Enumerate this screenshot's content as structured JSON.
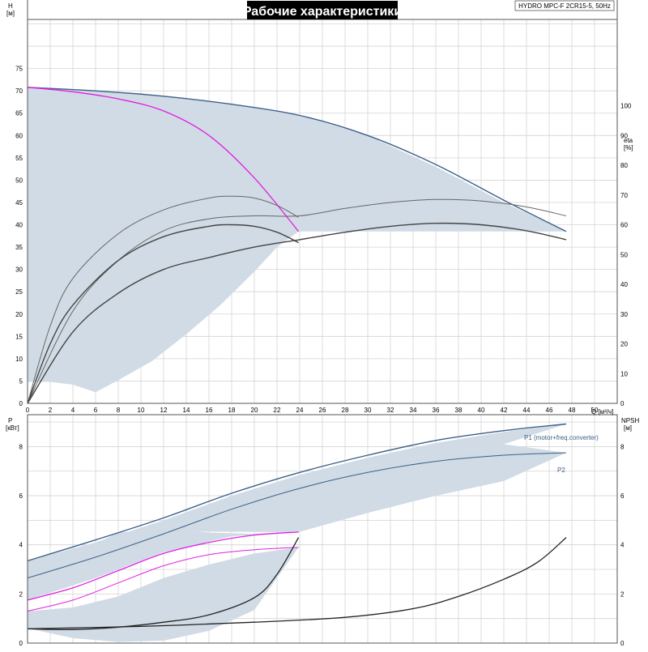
{
  "title": "Рабочие характеристики",
  "model_label": "HYDRO MPC-F 2CR15-5, 50Hz",
  "colors": {
    "grid": "#d4d4d4",
    "axis": "#555555",
    "envelope": "#d0dbe5",
    "qh_max": "#3d6089",
    "qh_single": "#e020e0",
    "efficiency": "#444444",
    "p1_line": "#3d6089",
    "npsh": "#222222",
    "title_bg": "#000000",
    "title_fg": "#ffffff"
  },
  "chart_data": [
    {
      "type": "line",
      "name": "qh",
      "xlabel": "Q [м³/ч]",
      "ylabel_left": [
        "H",
        "[м]"
      ],
      "ylabel_right": [
        "eta",
        "[%]"
      ],
      "xlim": [
        0,
        52
      ],
      "ylim": [
        0,
        86
      ],
      "eta_lim": [
        0,
        129
      ],
      "xticks": [
        0,
        2,
        4,
        6,
        8,
        10,
        12,
        14,
        16,
        18,
        20,
        22,
        24,
        26,
        28,
        30,
        32,
        34,
        36,
        38,
        40,
        42,
        44,
        46,
        48,
        50
      ],
      "yticks": [
        0,
        5,
        10,
        15,
        20,
        25,
        30,
        35,
        40,
        45,
        50,
        55,
        60,
        65,
        70,
        75
      ],
      "eta_ticks": [
        0,
        10,
        20,
        30,
        40,
        50,
        60,
        70,
        80,
        90,
        100
      ],
      "envelope_region": [
        [
          0,
          70.8
        ],
        [
          10,
          69.5
        ],
        [
          18,
          67
        ],
        [
          24,
          64.5
        ],
        [
          30,
          60
        ],
        [
          36,
          53
        ],
        [
          42,
          45
        ],
        [
          47.5,
          38.5
        ],
        [
          23.9,
          38.5
        ],
        [
          22,
          35
        ],
        [
          20,
          29.5
        ],
        [
          17,
          22
        ],
        [
          14,
          15.5
        ],
        [
          11,
          9.5
        ],
        [
          8,
          5.2
        ],
        [
          6,
          2.5
        ],
        [
          4,
          4.2
        ],
        [
          2,
          4.8
        ],
        [
          0,
          4.8
        ]
      ],
      "series": [
        {
          "key": "qh_max",
          "points": [
            [
              0,
              70.8
            ],
            [
              6,
              70
            ],
            [
              12,
              68.8
            ],
            [
              18,
              67
            ],
            [
              24,
              64.5
            ],
            [
              30,
              60
            ],
            [
              36,
              53.5
            ],
            [
              42,
              45.5
            ],
            [
              47.5,
              38.5
            ]
          ]
        },
        {
          "key": "qh_single",
          "points": [
            [
              0,
              70.8
            ],
            [
              4,
              69.8
            ],
            [
              8,
              68.2
            ],
            [
              12,
              65.5
            ],
            [
              16,
              60
            ],
            [
              20,
              50.5
            ],
            [
              23.9,
              38.5
            ]
          ]
        },
        {
          "key": "eta_upper_max",
          "points": [
            [
              0,
              0
            ],
            [
              4,
              31
            ],
            [
              8,
              48
            ],
            [
              12,
              58
            ],
            [
              16,
              62
            ],
            [
              20,
              63
            ],
            [
              24,
              63
            ],
            [
              28,
              65.5
            ],
            [
              32,
              67.5
            ],
            [
              36,
              68.5
            ],
            [
              40,
              68
            ],
            [
              44,
              66
            ],
            [
              47.5,
              63
            ]
          ]
        },
        {
          "key": "eta_lower_max",
          "points": [
            [
              0,
              0
            ],
            [
              4,
              24
            ],
            [
              8,
              37
            ],
            [
              12,
              45
            ],
            [
              16,
              49
            ],
            [
              20,
              52.5
            ],
            [
              24,
              55
            ],
            [
              28,
              57.5
            ],
            [
              32,
              59.5
            ],
            [
              36,
              60.5
            ],
            [
              40,
              60
            ],
            [
              44,
              58
            ],
            [
              47.5,
              55
            ]
          ]
        },
        {
          "key": "eta_upper_single",
          "points": [
            [
              0,
              0
            ],
            [
              2,
              26
            ],
            [
              4,
              42
            ],
            [
              8,
              57
            ],
            [
              12,
              65
            ],
            [
              16,
              69
            ],
            [
              18,
              69.6
            ],
            [
              20,
              69
            ],
            [
              22,
              66.5
            ],
            [
              23.9,
              62.5
            ]
          ]
        },
        {
          "key": "eta_lower_single",
          "points": [
            [
              0,
              0
            ],
            [
              2,
              20
            ],
            [
              4,
              33
            ],
            [
              8,
              48
            ],
            [
              12,
              56
            ],
            [
              16,
              59.5
            ],
            [
              18,
              60
            ],
            [
              20,
              59.5
            ],
            [
              22,
              57.5
            ],
            [
              23.9,
              54
            ]
          ]
        }
      ]
    },
    {
      "type": "line",
      "name": "power_npsh",
      "ylabel_left": [
        "P",
        "[кВт]"
      ],
      "ylabel_right": [
        "NPSH",
        "[м]"
      ],
      "xlim": [
        0,
        52
      ],
      "ylim": [
        0,
        9.3
      ],
      "yticks": [
        0,
        2,
        4,
        6,
        8
      ],
      "npsh_ticks": [
        0,
        2,
        4,
        6,
        8
      ],
      "envelope_regions": [
        [
          [
            0,
            3.35
          ],
          [
            6,
            4.1
          ],
          [
            12,
            5.0
          ],
          [
            18,
            6.0
          ],
          [
            24,
            6.85
          ],
          [
            30,
            7.55
          ],
          [
            36,
            8.15
          ],
          [
            42,
            8.6
          ],
          [
            47.5,
            8.92
          ],
          [
            42,
            8.1
          ],
          [
            36,
            7.7
          ],
          [
            30,
            7.2
          ],
          [
            24,
            6.55
          ],
          [
            20,
            5.8
          ],
          [
            16,
            5.1
          ],
          [
            12,
            4.7
          ],
          [
            10,
            4.5
          ],
          [
            6,
            3.55
          ],
          [
            0,
            2.65
          ]
        ],
        [
          [
            0,
            1.75
          ],
          [
            6,
            2.65
          ],
          [
            12,
            3.7
          ],
          [
            18,
            4.35
          ],
          [
            23.9,
            4.52
          ],
          [
            20,
            4.45
          ],
          [
            16,
            4.5
          ],
          [
            12,
            4.65
          ],
          [
            8,
            4.5
          ],
          [
            6,
            4.05
          ],
          [
            0,
            3.35
          ]
        ],
        [
          [
            23.9,
            4.52
          ],
          [
            30,
            5.3
          ],
          [
            36,
            6.0
          ],
          [
            42,
            6.6
          ],
          [
            47.5,
            7.75
          ],
          [
            42,
            8.1
          ],
          [
            36,
            7.7
          ],
          [
            30,
            7.2
          ],
          [
            24,
            6.55
          ],
          [
            20,
            5.8
          ],
          [
            16,
            5.1
          ],
          [
            12,
            4.7
          ],
          [
            10,
            4.55
          ]
        ],
        [
          [
            0,
            0.6
          ],
          [
            4,
            0.2
          ],
          [
            8,
            0.05
          ],
          [
            12,
            0.1
          ],
          [
            16,
            0.5
          ],
          [
            20,
            1.35
          ],
          [
            23.9,
            3.9
          ],
          [
            20,
            3.65
          ],
          [
            16,
            3.2
          ],
          [
            12,
            2.65
          ],
          [
            8,
            1.9
          ],
          [
            4,
            1.45
          ],
          [
            0,
            1.3
          ]
        ]
      ],
      "series": [
        {
          "key": "p1_max",
          "label": "P1 (motor+freq.converter)",
          "points": [
            [
              0,
              3.35
            ],
            [
              6,
              4.2
            ],
            [
              12,
              5.1
            ],
            [
              18,
              6.1
            ],
            [
              24,
              6.95
            ],
            [
              30,
              7.65
            ],
            [
              36,
              8.25
            ],
            [
              42,
              8.65
            ],
            [
              47.5,
              8.92
            ]
          ]
        },
        {
          "key": "p2_max",
          "label": "P2",
          "points": [
            [
              0,
              2.65
            ],
            [
              6,
              3.5
            ],
            [
              12,
              4.45
            ],
            [
              18,
              5.45
            ],
            [
              24,
              6.3
            ],
            [
              30,
              6.95
            ],
            [
              36,
              7.4
            ],
            [
              42,
              7.65
            ],
            [
              47.5,
              7.75
            ]
          ]
        },
        {
          "key": "p1_single",
          "points": [
            [
              0,
              1.75
            ],
            [
              4,
              2.25
            ],
            [
              8,
              2.95
            ],
            [
              12,
              3.65
            ],
            [
              16,
              4.1
            ],
            [
              20,
              4.4
            ],
            [
              23.9,
              4.52
            ]
          ]
        },
        {
          "key": "p2_single",
          "points": [
            [
              0,
              1.3
            ],
            [
              4,
              1.75
            ],
            [
              8,
              2.45
            ],
            [
              12,
              3.15
            ],
            [
              16,
              3.6
            ],
            [
              20,
              3.8
            ],
            [
              23.9,
              3.9
            ]
          ]
        },
        {
          "key": "npsh_single",
          "points": [
            [
              0,
              0.58
            ],
            [
              4,
              0.55
            ],
            [
              8,
              0.65
            ],
            [
              12,
              0.85
            ],
            [
              16,
              1.15
            ],
            [
              20,
              1.85
            ],
            [
              22,
              2.8
            ],
            [
              23.9,
              4.3
            ]
          ]
        },
        {
          "key": "npsh_max",
          "points": [
            [
              0,
              0.58
            ],
            [
              10,
              0.68
            ],
            [
              20,
              0.85
            ],
            [
              28,
              1.05
            ],
            [
              34,
              1.4
            ],
            [
              38,
              1.9
            ],
            [
              42,
              2.6
            ],
            [
              45,
              3.3
            ],
            [
              47.5,
              4.3
            ]
          ]
        }
      ]
    }
  ]
}
